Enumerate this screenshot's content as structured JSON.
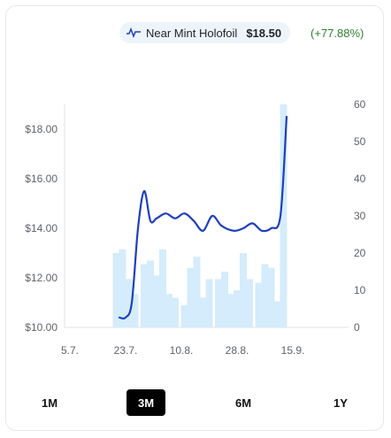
{
  "legend": {
    "label": "Near Mint Holofoil",
    "price": "$18.50",
    "change": "(+77.88%)",
    "icon": "pulse-line-icon",
    "line_color": "#1f3fbf",
    "bar_color": "#d4ecfb"
  },
  "range_buttons": [
    {
      "label": "1M",
      "active": false
    },
    {
      "label": "3M",
      "active": true
    },
    {
      "label": "6M",
      "active": false
    },
    {
      "label": "1Y",
      "active": false
    }
  ],
  "chart_data": {
    "type": "line",
    "x_type": "date",
    "x_tick_labels": [
      "5.7.",
      "23.7.",
      "10.8.",
      "28.8.",
      "15.9."
    ],
    "x_tick_dates": [
      "2024-07-05",
      "2024-07-23",
      "2024-08-10",
      "2024-08-28",
      "2024-09-15"
    ],
    "y_left": {
      "ticks": [
        10,
        12,
        14,
        16,
        18
      ],
      "tick_labels": [
        "$10.00",
        "$12.00",
        "$14.00",
        "$16.00",
        "$18.00"
      ],
      "lim": [
        10,
        19
      ]
    },
    "y_right": {
      "ticks": [
        0,
        10,
        20,
        30,
        40,
        50,
        60
      ],
      "tick_labels": [
        "0",
        "10",
        "20",
        "30",
        "40",
        "50",
        "60"
      ],
      "lim": [
        0,
        60
      ]
    },
    "series": [
      {
        "kind": "bar",
        "axis": "right",
        "points": [
          {
            "x": "2024-07-20",
            "y": 20
          },
          {
            "x": "2024-07-22",
            "y": 21
          },
          {
            "x": "2024-07-24",
            "y": 13
          },
          {
            "x": "2024-07-26",
            "y": 9
          },
          {
            "x": "2024-07-29",
            "y": 17
          },
          {
            "x": "2024-07-31",
            "y": 18
          },
          {
            "x": "2024-08-02",
            "y": 14
          },
          {
            "x": "2024-08-04",
            "y": 21
          },
          {
            "x": "2024-08-06",
            "y": 9
          },
          {
            "x": "2024-08-08",
            "y": 8
          },
          {
            "x": "2024-08-11",
            "y": 6
          },
          {
            "x": "2024-08-13",
            "y": 16
          },
          {
            "x": "2024-08-15",
            "y": 19
          },
          {
            "x": "2024-08-17",
            "y": 8
          },
          {
            "x": "2024-08-19",
            "y": 13
          },
          {
            "x": "2024-08-22",
            "y": 13
          },
          {
            "x": "2024-08-24",
            "y": 15
          },
          {
            "x": "2024-08-26",
            "y": 9
          },
          {
            "x": "2024-08-28",
            "y": 10
          },
          {
            "x": "2024-08-30",
            "y": 20
          },
          {
            "x": "2024-09-01",
            "y": 13
          },
          {
            "x": "2024-09-04",
            "y": 12
          },
          {
            "x": "2024-09-06",
            "y": 17
          },
          {
            "x": "2024-09-08",
            "y": 16
          },
          {
            "x": "2024-09-10",
            "y": 7
          },
          {
            "x": "2024-09-12",
            "y": 60
          }
        ]
      },
      {
        "kind": "line",
        "axis": "left",
        "points": [
          {
            "x": "2024-07-21",
            "y": 10.4
          },
          {
            "x": "2024-07-23",
            "y": 10.4
          },
          {
            "x": "2024-07-25",
            "y": 11.0
          },
          {
            "x": "2024-07-27",
            "y": 14.0
          },
          {
            "x": "2024-07-29",
            "y": 15.5
          },
          {
            "x": "2024-07-31",
            "y": 14.3
          },
          {
            "x": "2024-08-02",
            "y": 14.4
          },
          {
            "x": "2024-08-05",
            "y": 14.6
          },
          {
            "x": "2024-08-08",
            "y": 14.4
          },
          {
            "x": "2024-08-11",
            "y": 14.6
          },
          {
            "x": "2024-08-14",
            "y": 14.3
          },
          {
            "x": "2024-08-17",
            "y": 13.9
          },
          {
            "x": "2024-08-20",
            "y": 14.5
          },
          {
            "x": "2024-08-23",
            "y": 14.1
          },
          {
            "x": "2024-08-27",
            "y": 13.9
          },
          {
            "x": "2024-08-30",
            "y": 14.0
          },
          {
            "x": "2024-09-02",
            "y": 14.2
          },
          {
            "x": "2024-09-05",
            "y": 13.9
          },
          {
            "x": "2024-09-08",
            "y": 14.0
          },
          {
            "x": "2024-09-11",
            "y": 14.5
          },
          {
            "x": "2024-09-13",
            "y": 18.5
          }
        ]
      }
    ]
  }
}
